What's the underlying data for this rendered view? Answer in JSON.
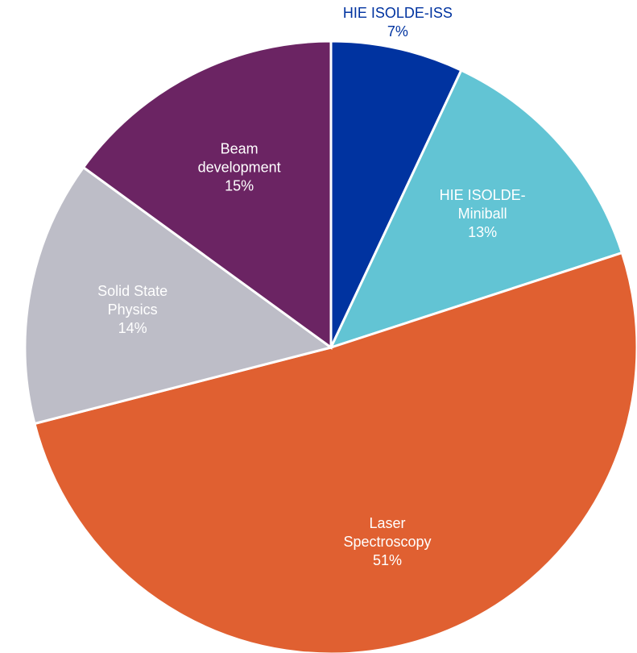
{
  "chart_data": {
    "type": "pie",
    "title": "",
    "start_angle_deg": 0,
    "direction": "clockwise",
    "slices": [
      {
        "label_lines": [
          "HIE ISOLDE-ISS"
        ],
        "value": 7,
        "value_label": "7%",
        "color": "#0033A0",
        "label_color": "#0033A0",
        "label_position": "outside"
      },
      {
        "label_lines": [
          "HIE ISOLDE-",
          "Miniball"
        ],
        "value": 13,
        "value_label": "13%",
        "color": "#62C4D4",
        "label_color": "#ffffff",
        "label_position": "inside"
      },
      {
        "label_lines": [
          "Laser",
          "Spectroscopy"
        ],
        "value": 51,
        "value_label": "51%",
        "color": "#E06031",
        "label_color": "#ffffff",
        "label_position": "inside"
      },
      {
        "label_lines": [
          "Solid State",
          "Physics"
        ],
        "value": 14,
        "value_label": "14%",
        "color": "#BDBDC7",
        "label_color": "#ffffff",
        "label_position": "inside"
      },
      {
        "label_lines": [
          "Beam",
          "development"
        ],
        "value": 15,
        "value_label": "15%",
        "color": "#6B2463",
        "label_color": "#ffffff",
        "label_position": "inside"
      }
    ]
  }
}
